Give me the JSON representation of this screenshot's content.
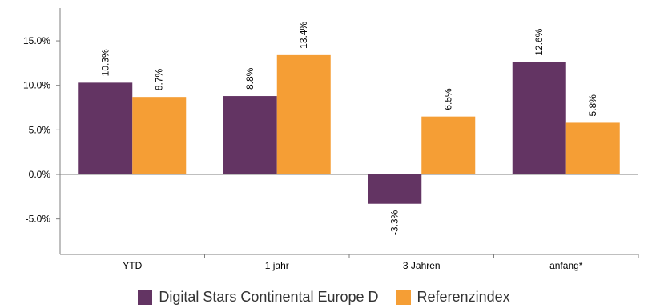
{
  "chart_data": {
    "type": "bar",
    "categories": [
      "YTD",
      "1 jahr",
      "3 Jahren",
      "anfang*"
    ],
    "series": [
      {
        "name": "Digital Stars Continental Europe D",
        "values": [
          10.3,
          8.8,
          -3.3,
          12.6
        ],
        "labels": [
          "10.3%",
          "8.8%",
          "-3.3%",
          "12.6%"
        ],
        "color": "#633463"
      },
      {
        "name": "Referenzindex",
        "values": [
          8.7,
          13.4,
          6.5,
          5.8
        ],
        "labels": [
          "8.7%",
          "13.4%",
          "6.5%",
          "5.8%"
        ],
        "color": "#F59E35"
      }
    ],
    "yticks": [
      -5,
      0,
      5,
      10,
      15
    ],
    "ytick_labels": [
      "-5.0%",
      "0.0%",
      "5.0%",
      "10.0%",
      "15.0%"
    ],
    "ylim": [
      -8.5,
      18.8
    ],
    "grid": false,
    "legend_position": "bottom"
  }
}
